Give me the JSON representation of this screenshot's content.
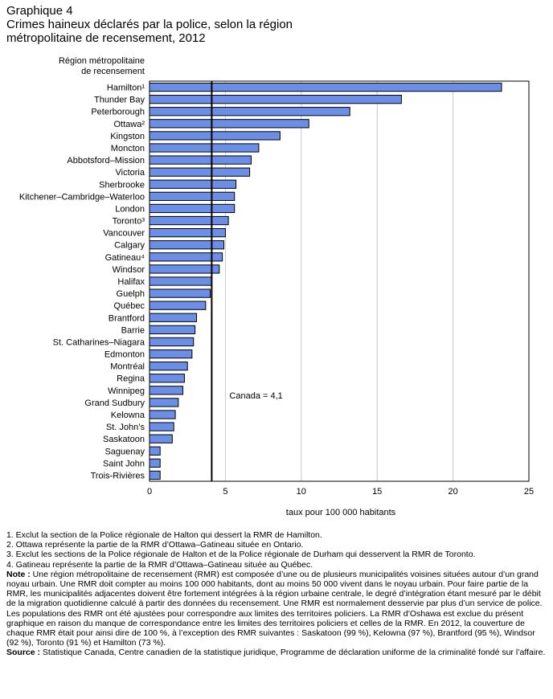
{
  "title_line1": "Graphique 4",
  "title_line2": "Crimes haineux déclarés par la police, selon la région",
  "title_line3": "métropolitaine de recensement, 2012",
  "chart_data": {
    "type": "bar",
    "orientation": "horizontal",
    "ylabel_line1": "Région métropolitaine",
    "ylabel_line2": "de recensement",
    "xlabel": "taux pour 100 000 habitants",
    "xlim": [
      0,
      25
    ],
    "xticks": [
      "0",
      "5",
      "10",
      "15",
      "20",
      "25"
    ],
    "grid": true,
    "bar_color": "#6b8fe6",
    "categories": [
      "Hamilton¹",
      "Thunder Bay",
      "Peterborough",
      "Ottawa²",
      "Kingston",
      "Moncton",
      "Abbotsford–Mission",
      "Victoria",
      "Sherbrooke",
      "Kitchener–Cambridge–Waterloo",
      "London",
      "Toronto³",
      "Vancouver",
      "Calgary",
      "Gatineau⁴",
      "Windsor",
      "Halifax",
      "Guelph",
      "Québec",
      "Brantford",
      "Barrie",
      "St. Catharines–Niagara",
      "Edmonton",
      "Montréal",
      "Regina",
      "Winnipeg",
      "Grand Sudbury",
      "Kelowna",
      "St. John’s",
      "Saskatoon",
      "Saguenay",
      "Saint John",
      "Trois-Rivières"
    ],
    "values": [
      23.2,
      16.6,
      13.2,
      10.5,
      8.6,
      7.2,
      6.7,
      6.6,
      5.7,
      5.6,
      5.6,
      5.2,
      5.0,
      4.9,
      4.8,
      4.6,
      4.1,
      4.0,
      3.7,
      3.1,
      3.0,
      2.9,
      2.8,
      2.5,
      2.3,
      2.2,
      1.9,
      1.7,
      1.6,
      1.5,
      0.7,
      0.7,
      0.7
    ],
    "reference_value": 4.1,
    "reference_label": "Canada = 4,1"
  },
  "notes": {
    "n1": "1. Exclut la section de la Police régionale de Halton qui dessert la RMR de Hamilton.",
    "n2": "2. Ottawa représente la partie de la RMR d’Ottawa–Gatineau située en Ontario.",
    "n3": "3. Exclut les sections de la Police régionale de Halton et de la Police régionale de Durham qui desservent la RMR de Toronto.",
    "n4": "4. Gatineau représente la partie de la RMR d’Ottawa–Gatineau située au Québec.",
    "note_label": "Note :",
    "note_text": " Une région métropolitaine de recensement (RMR) est composée d’une ou de plusieurs municipalités voisines situées autour d’un grand noyau urbain. Une RMR doit compter au moins 100 000 habitants, dont au moins 50 000 vivent dans le noyau urbain. Pour faire partie de la RMR, les municipalités adjacentes doivent être fortement intégrées à la région urbaine centrale, le degré d’intégration étant mesuré par le débit de la migration quotidienne calculé à partir des données du recensement. Une RMR est normalement desservie par plus d’un service de police. Les populations des RMR ont été ajustées pour correspondre aux limites des territoires policiers. La RMR d’Oshawa est exclue du présent graphique en raison du manque de correspondance entre les limites des territoires policiers et celles de la RMR. En 2012, la couverture de chaque RMR était pour ainsi dire de 100 %, à l’exception des RMR suivantes : Saskatoon (99 %), Kelowna (97 %), Brantford (95 %), Windsor (92 %), Toronto (91 %) et Hamilton (73 %).",
    "source_label": "Source :",
    "source_text": " Statistique Canada, Centre canadien de la statistique juridique, Programme de déclaration uniforme de la criminalité fondé sur l’affaire."
  }
}
